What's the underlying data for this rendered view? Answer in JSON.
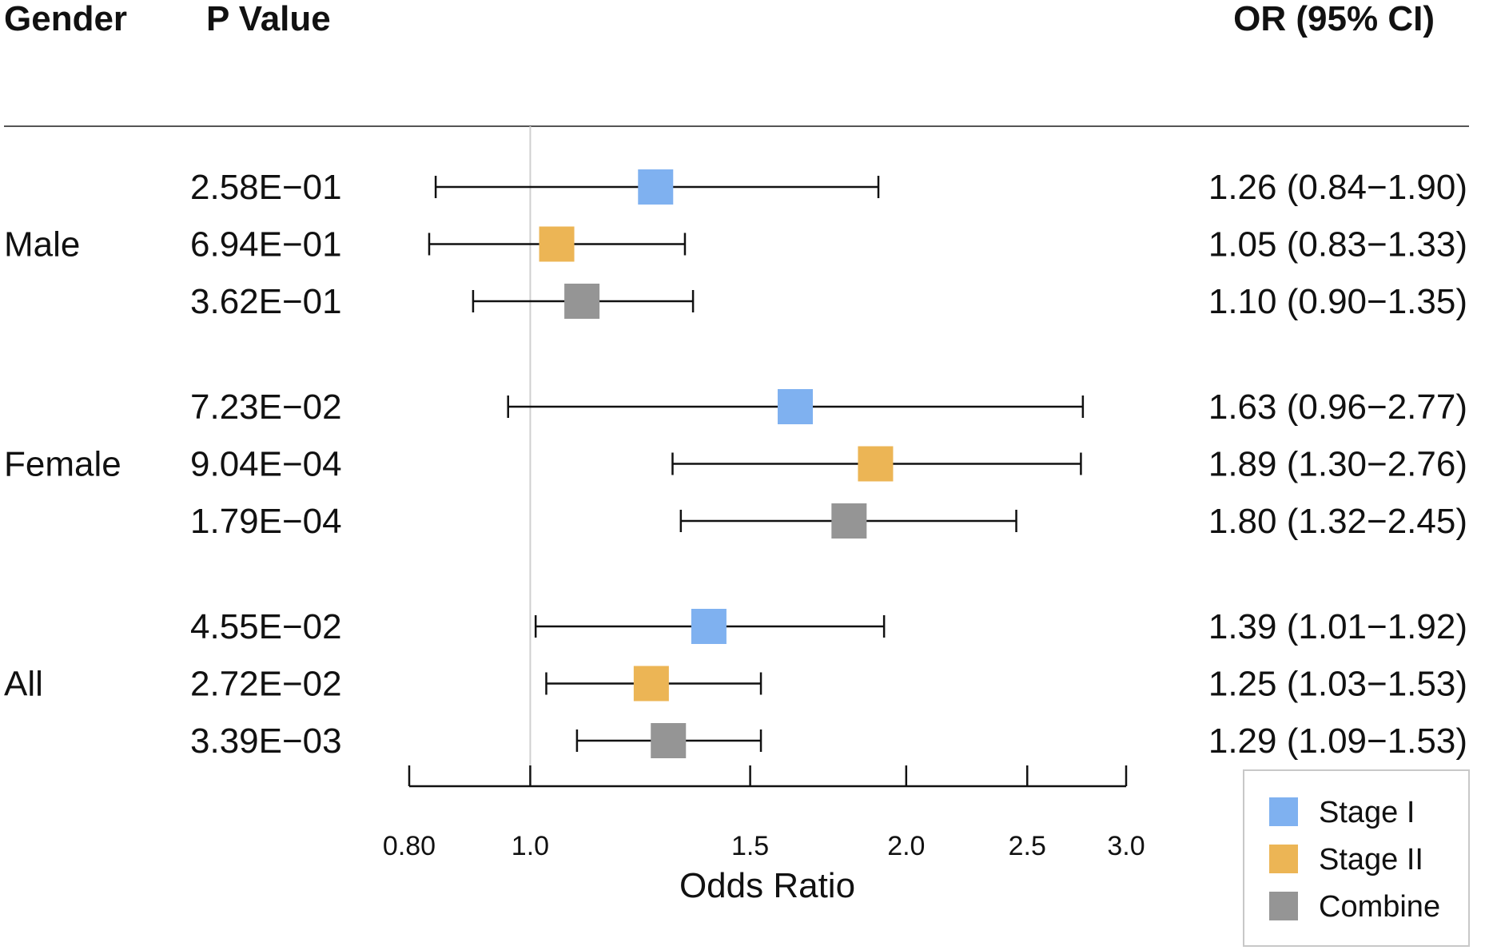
{
  "chart_data": {
    "type": "forest",
    "headers": {
      "group": "Gender",
      "pvalue": "P Value",
      "or": "OR (95% CI)"
    },
    "xlabel": "Odds Ratio",
    "xscale": "log",
    "xlim": [
      0.8,
      3.0
    ],
    "xticks": [
      0.8,
      1.0,
      1.5,
      2.0,
      2.5,
      3.0
    ],
    "xtick_labels": [
      "0.80",
      "1.0",
      "1.5",
      "2.0",
      "2.5",
      "3.0"
    ],
    "reference_line": 1.0,
    "series": [
      {
        "name": "Stage I",
        "color": "#7fb1f0"
      },
      {
        "name": "Stage II",
        "color": "#ecb555"
      },
      {
        "name": "Combine",
        "color": "#959595"
      }
    ],
    "groups": [
      {
        "label": "Male",
        "rows": [
          {
            "series": "Stage I",
            "p": "2.58E−01",
            "or": 1.26,
            "lo": 0.84,
            "hi": 1.9,
            "text": "1.26 (0.84−1.90)"
          },
          {
            "series": "Stage II",
            "p": "6.94E−01",
            "or": 1.05,
            "lo": 0.83,
            "hi": 1.33,
            "text": "1.05 (0.83−1.33)"
          },
          {
            "series": "Combine",
            "p": "3.62E−01",
            "or": 1.1,
            "lo": 0.9,
            "hi": 1.35,
            "text": "1.10 (0.90−1.35)"
          }
        ]
      },
      {
        "label": "Female",
        "rows": [
          {
            "series": "Stage I",
            "p": "7.23E−02",
            "or": 1.63,
            "lo": 0.96,
            "hi": 2.77,
            "text": "1.63 (0.96−2.77)"
          },
          {
            "series": "Stage II",
            "p": "9.04E−04",
            "or": 1.89,
            "lo": 1.3,
            "hi": 2.76,
            "text": "1.89 (1.30−2.76)"
          },
          {
            "series": "Combine",
            "p": "1.79E−04",
            "or": 1.8,
            "lo": 1.32,
            "hi": 2.45,
            "text": "1.80 (1.32−2.45)"
          }
        ]
      },
      {
        "label": "All",
        "rows": [
          {
            "series": "Stage I",
            "p": "4.55E−02",
            "or": 1.39,
            "lo": 1.01,
            "hi": 1.92,
            "text": "1.39 (1.01−1.92)"
          },
          {
            "series": "Stage II",
            "p": "2.72E−02",
            "or": 1.25,
            "lo": 1.03,
            "hi": 1.53,
            "text": "1.25 (1.03−1.53)"
          },
          {
            "series": "Combine",
            "p": "3.39E−03",
            "or": 1.29,
            "lo": 1.09,
            "hi": 1.53,
            "text": "1.29 (1.09−1.53)"
          }
        ]
      }
    ],
    "legend": {
      "position": "bottom-right",
      "entries": [
        "Stage I",
        "Stage II",
        "Combine"
      ]
    }
  }
}
